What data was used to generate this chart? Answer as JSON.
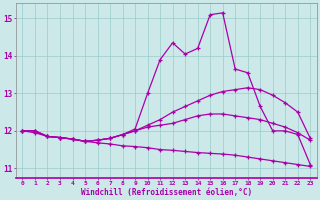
{
  "xlabel": "Windchill (Refroidissement éolien,°C)",
  "bg_color": "#cce8e8",
  "line_color": "#aa00aa",
  "grid_color": "#99cccc",
  "xlim": [
    -0.5,
    23.5
  ],
  "ylim": [
    10.75,
    15.4
  ],
  "yticks": [
    11,
    12,
    13,
    14,
    15
  ],
  "xticks": [
    0,
    1,
    2,
    3,
    4,
    5,
    6,
    7,
    8,
    9,
    10,
    11,
    12,
    13,
    14,
    15,
    16,
    17,
    18,
    19,
    20,
    21,
    22,
    23
  ],
  "line_peak_x": [
    0,
    1,
    2,
    3,
    4,
    5,
    6,
    7,
    8,
    9,
    10,
    11,
    12,
    13,
    14,
    15,
    16,
    17,
    18,
    19,
    20,
    21,
    22,
    23
  ],
  "line_peak_y": [
    12.0,
    12.0,
    11.85,
    11.82,
    11.78,
    11.72,
    11.75,
    11.8,
    11.9,
    12.05,
    13.0,
    13.9,
    14.35,
    14.05,
    14.2,
    15.1,
    15.15,
    13.65,
    13.55,
    12.65,
    12.0,
    12.0,
    11.9,
    11.1
  ],
  "line_mid_x": [
    0,
    1,
    2,
    3,
    4,
    5,
    6,
    7,
    8,
    9,
    10,
    11,
    12,
    13,
    14,
    15,
    16,
    17,
    18,
    19,
    20,
    21,
    22,
    23
  ],
  "line_mid_y": [
    12.0,
    12.0,
    11.85,
    11.82,
    11.78,
    11.72,
    11.75,
    11.8,
    11.9,
    12.0,
    12.15,
    12.3,
    12.5,
    12.65,
    12.8,
    12.95,
    13.05,
    13.1,
    13.15,
    13.1,
    12.95,
    12.75,
    12.5,
    11.8
  ],
  "line_flat_x": [
    0,
    1,
    2,
    3,
    4,
    5,
    6,
    7,
    8,
    9,
    10,
    11,
    12,
    13,
    14,
    15,
    16,
    17,
    18,
    19,
    20,
    21,
    22,
    23
  ],
  "line_flat_y": [
    12.0,
    12.0,
    11.85,
    11.82,
    11.78,
    11.72,
    11.75,
    11.8,
    11.9,
    12.0,
    12.1,
    12.15,
    12.2,
    12.3,
    12.4,
    12.45,
    12.45,
    12.4,
    12.35,
    12.3,
    12.2,
    12.1,
    11.95,
    11.75
  ],
  "line_down_x": [
    0,
    1,
    2,
    3,
    4,
    5,
    6,
    7,
    8,
    9,
    10,
    11,
    12,
    13,
    14,
    15,
    16,
    17,
    18,
    19,
    20,
    21,
    22,
    23
  ],
  "line_down_y": [
    12.0,
    11.95,
    11.85,
    11.82,
    11.78,
    11.72,
    11.68,
    11.65,
    11.6,
    11.58,
    11.55,
    11.5,
    11.48,
    11.45,
    11.42,
    11.4,
    11.38,
    11.35,
    11.3,
    11.25,
    11.2,
    11.15,
    11.1,
    11.05
  ],
  "marker": "+",
  "markersize": 3.5,
  "linewidth": 0.9
}
